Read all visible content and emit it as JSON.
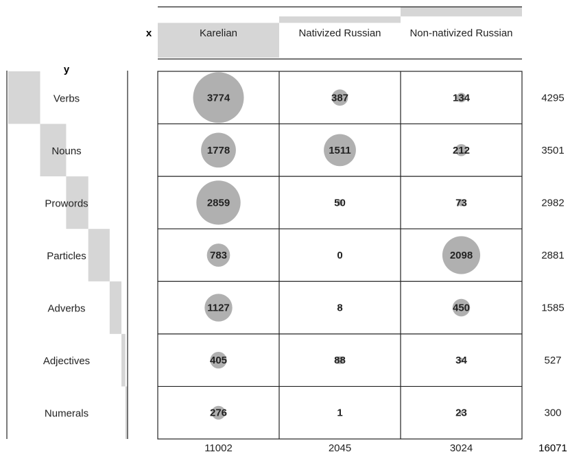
{
  "chart_data": {
    "type": "table",
    "x_axis_label": "x",
    "y_axis_label": "y",
    "columns": [
      "Karelian",
      "Nativized Russian",
      "Non-nativized Russian"
    ],
    "rows": [
      "Verbs",
      "Nouns",
      "Prowords",
      "Particles",
      "Adverbs",
      "Adjectives",
      "Numerals"
    ],
    "values": [
      [
        3774,
        387,
        134
      ],
      [
        1778,
        1511,
        212
      ],
      [
        2859,
        50,
        73
      ],
      [
        783,
        0,
        2098
      ],
      [
        1127,
        8,
        450
      ],
      [
        405,
        88,
        34
      ],
      [
        276,
        1,
        23
      ]
    ],
    "row_totals": [
      4295,
      3501,
      2982,
      2881,
      1585,
      527,
      300
    ],
    "column_totals": [
      11002,
      2045,
      3024
    ],
    "grand_total": 16071,
    "max_value": 3774,
    "colors": {
      "bubble": "#b0b0b0",
      "bar": "#d6d6d6",
      "line": "#222222",
      "text": "#222222"
    }
  }
}
